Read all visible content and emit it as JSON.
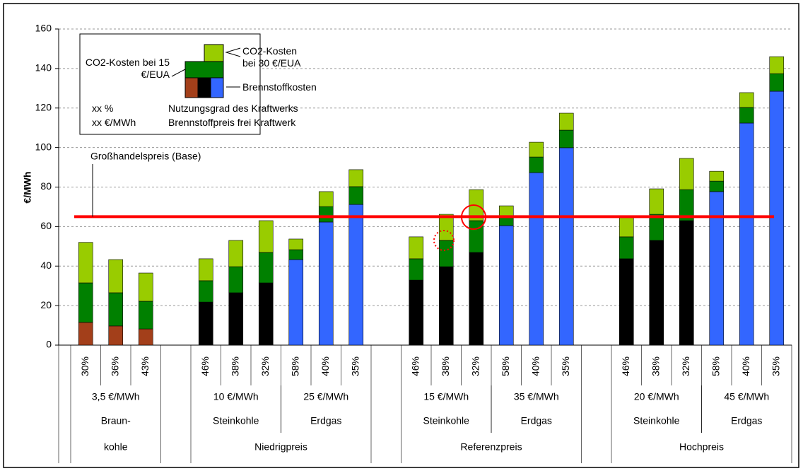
{
  "chart_data": {
    "type": "bar",
    "stacked": true,
    "ylabel": "€/MWh",
    "ylim": [
      0,
      160
    ],
    "yticks": [
      0,
      20,
      40,
      60,
      80,
      100,
      120,
      140,
      160
    ],
    "grid": true,
    "categories": [
      "30%",
      "36%",
      "43%",
      null,
      "46%",
      "38%",
      "32%",
      "58%",
      "40%",
      "35%",
      null,
      "46%",
      "38%",
      "32%",
      "58%",
      "40%",
      "35%",
      null,
      "46%",
      "38%",
      "32%",
      "58%",
      "40%",
      "35%"
    ],
    "series": [
      {
        "name": "Brennstoffkosten",
        "colors": [
          "#a33f1a",
          "#a33f1a",
          "#a33f1a",
          null,
          "#000000",
          "#000000",
          "#000000",
          "#3366ff",
          "#3366ff",
          "#3366ff",
          null,
          "#000000",
          "#000000",
          "#000000",
          "#3366ff",
          "#3366ff",
          "#3366ff",
          null,
          "#000000",
          "#000000",
          "#000000",
          "#3366ff",
          "#3366ff",
          "#3366ff"
        ],
        "values": [
          11.5,
          9.7,
          8.2,
          null,
          21.8,
          26.5,
          31.5,
          43.3,
          62.3,
          71.2,
          null,
          32.9,
          39.7,
          46.9,
          60.5,
          87.3,
          99.9,
          null,
          43.7,
          53.0,
          63.0,
          77.7,
          112.4,
          128.5
        ]
      },
      {
        "name": "CO2-Kosten bei 15 €/EUA",
        "color": "#008000",
        "values": [
          20.0,
          16.8,
          14.0,
          null,
          10.8,
          13.2,
          15.4,
          5.0,
          7.8,
          9.0,
          null,
          10.8,
          13.3,
          16.1,
          4.6,
          7.9,
          8.9,
          null,
          11.1,
          13.2,
          15.7,
          5.3,
          7.9,
          8.9
        ]
      },
      {
        "name": "CO2-Kosten bei 30 €/EUA",
        "color": "#99cc00",
        "values": [
          20.5,
          16.8,
          14.3,
          null,
          11.1,
          13.3,
          16.1,
          5.4,
          7.6,
          8.6,
          null,
          11.1,
          13.2,
          15.7,
          5.4,
          7.5,
          8.6,
          null,
          10.7,
          12.9,
          15.8,
          5.0,
          7.5,
          8.6
        ]
      }
    ],
    "reference_line": {
      "value": 65,
      "label": "Großhandelspreis (Base)",
      "color": "#ff0000"
    },
    "price_labels": [
      "3,5 €/MWh",
      "10 €/MWh",
      "25 €/MWh",
      "15 €/MWh",
      "35 €/MWh",
      "20 €/MWh",
      "45 €/MWh"
    ],
    "fuel_labels": [
      "Braun-",
      "Steinkohle",
      "Erdgas",
      "Steinkohle",
      "Erdgas",
      "Steinkohle",
      "Erdgas"
    ],
    "scenario_labels": [
      "kohle",
      "Niedrigpreis",
      "Referenzpreis",
      "Hochpreis"
    ],
    "legend_notes": [
      {
        "symbol": "xx %",
        "text": "Nutzungsgrad des Kraftwerks"
      },
      {
        "symbol": "xx €/MWh",
        "text": "Brennstoffpreis frei Kraftwerk"
      }
    ]
  }
}
